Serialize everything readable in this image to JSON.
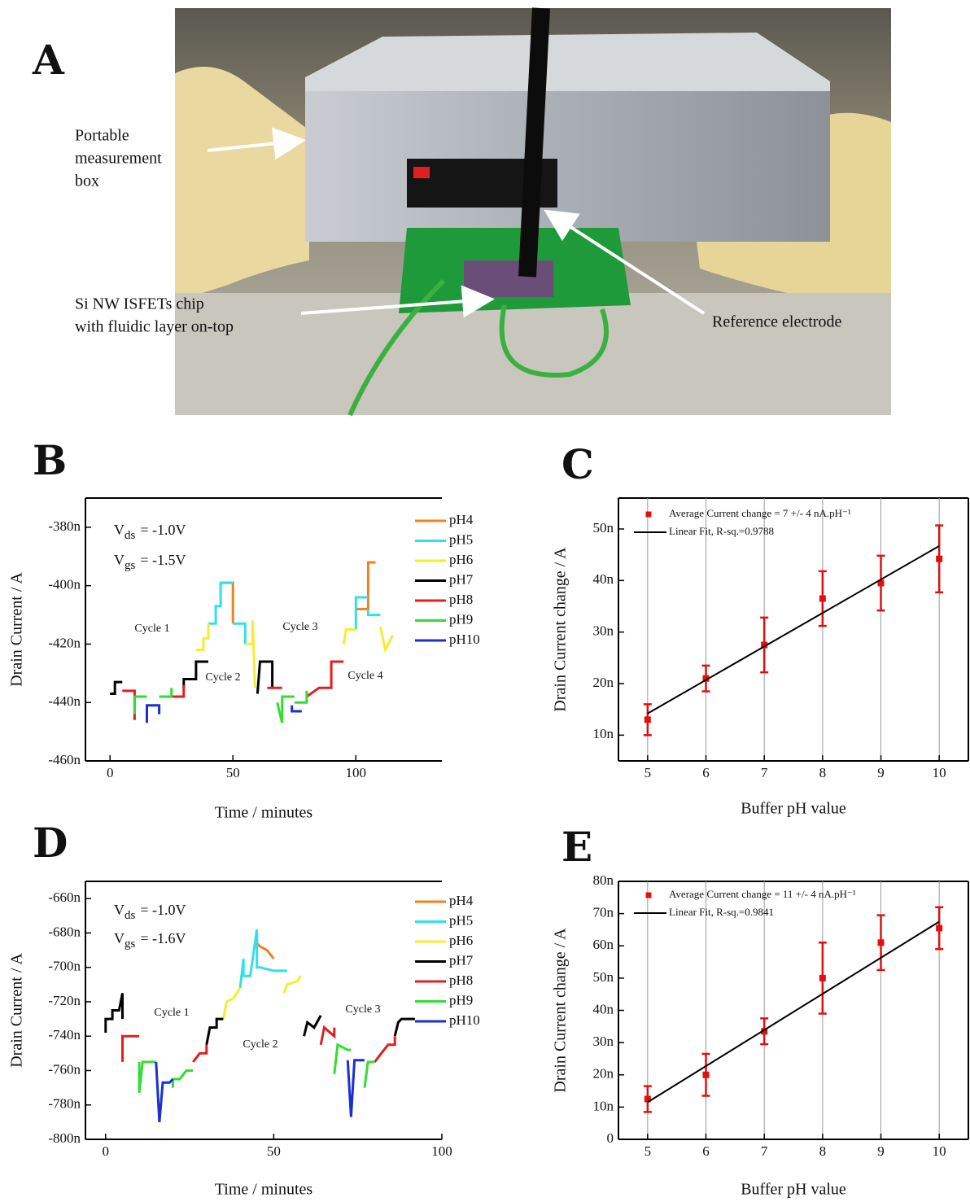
{
  "photo": {
    "panel": "A",
    "labels": [
      [
        "Portable",
        "measurement",
        "box"
      ],
      [
        "Si NW ISFETs chip",
        "with fluidic layer on-top"
      ],
      [
        "Reference electrode"
      ]
    ]
  },
  "chart_data": [
    {
      "type": "line",
      "panel": "B",
      "xlabel": "Time / minutes",
      "ylabel": "Drain Current / A",
      "xlim": [
        -10,
        135
      ],
      "xticks": [
        0,
        50,
        100
      ],
      "ylim": [
        -460,
        -370
      ],
      "yticks": [
        {
          "value": -460,
          "label": "-460n"
        },
        {
          "value": -440,
          "label": "-440n"
        },
        {
          "value": -420,
          "label": "-420n"
        },
        {
          "value": -400,
          "label": "-400n"
        },
        {
          "value": -380,
          "label": "-380n"
        }
      ],
      "conditions": [
        {
          "symbol": "V",
          "sub": "ds",
          "text": "= -1.0V"
        },
        {
          "symbol": "V",
          "sub": "gs",
          "text": "= -1.5V"
        }
      ],
      "annotations": [
        "Cycle 1",
        "Cycle 2",
        "Cycle 3",
        "Cycle 4"
      ],
      "series": [
        {
          "name": "pH4",
          "color": "#f08020",
          "x": [
            45,
            50,
            50,
            null,
            100,
            105,
            105,
            108
          ],
          "values": [
            -399,
            -399,
            -413,
            null,
            -408,
            -408,
            -392,
            -392
          ]
        },
        {
          "name": "pH5",
          "color": "#33e0e8",
          "x": [
            40,
            43,
            43,
            45,
            45,
            50,
            null,
            50,
            55,
            55,
            null,
            100,
            100,
            105,
            null,
            105,
            105,
            110
          ],
          "values": [
            -413,
            -413,
            -407,
            -407,
            -399,
            -399,
            null,
            -413,
            -413,
            -420,
            null,
            -415,
            -404,
            -404,
            null,
            -408,
            -410,
            -410
          ]
        },
        {
          "name": "pH6",
          "color": "#f2ee30",
          "x": [
            35,
            38,
            38,
            40,
            40,
            null,
            55,
            58,
            58,
            59,
            null,
            95,
            96,
            100,
            null,
            110,
            112,
            115
          ],
          "values": [
            -422,
            -422,
            -418,
            -418,
            -413,
            null,
            -420,
            -420,
            -412,
            -435,
            null,
            -420,
            -415,
            -415,
            null,
            -414,
            -422,
            -417
          ]
        },
        {
          "name": "pH7",
          "color": "#000000",
          "x": [
            0,
            2,
            2,
            5,
            null,
            30,
            30,
            35,
            35,
            40,
            null,
            60,
            61,
            66,
            66
          ],
          "values": [
            -437,
            -437,
            -433,
            -433,
            null,
            -435,
            -432,
            -432,
            -426,
            -426,
            null,
            -437,
            -426,
            -426,
            -435
          ]
        },
        {
          "name": "pH8",
          "color": "#e02020",
          "x": [
            5,
            10,
            10,
            null,
            25,
            30,
            30,
            null,
            64,
            70,
            null,
            80,
            85,
            90,
            90,
            95
          ],
          "values": [
            -436,
            -436,
            -446,
            null,
            -438,
            -438,
            -434,
            null,
            -435,
            -435,
            null,
            -438,
            -435,
            -435,
            -426,
            -426
          ]
        },
        {
          "name": "pH9",
          "color": "#33dd33",
          "x": [
            10,
            10,
            15,
            null,
            20,
            25,
            25,
            null,
            68,
            70,
            70,
            75,
            null,
            75,
            80,
            80
          ],
          "values": [
            -444,
            -438,
            -438,
            null,
            -438,
            -438,
            -435,
            null,
            -440,
            -447,
            -438,
            -438,
            null,
            -440,
            -440,
            -436
          ]
        },
        {
          "name": "pH10",
          "color": "#1a2fd6",
          "x": [
            15,
            15,
            20,
            20,
            null,
            74,
            74,
            78
          ],
          "values": [
            -447,
            -441,
            -441,
            -444,
            null,
            -441,
            -443,
            -443
          ]
        }
      ]
    },
    {
      "type": "scatter",
      "panel": "C",
      "xlabel": "Buffer pH value",
      "ylabel": "Drain Current change / A",
      "xlim": [
        4.5,
        10.5
      ],
      "xticks": [
        5,
        6,
        7,
        8,
        9,
        10
      ],
      "vgrid": true,
      "ylim": [
        5,
        56
      ],
      "yticks": [
        {
          "value": 10,
          "label": "10n"
        },
        {
          "value": 20,
          "label": "20n"
        },
        {
          "value": 30,
          "label": "30n"
        },
        {
          "value": 40,
          "label": "40n"
        },
        {
          "value": 50,
          "label": "50n"
        }
      ],
      "series": [
        {
          "name": "Average Current change = 7 +/- 4 nA.pH⁻¹",
          "kind": "scatter",
          "color": "#e01010",
          "x": [
            5,
            6,
            7,
            8,
            9,
            10
          ],
          "values": [
            13,
            21,
            27.5,
            36.5,
            39.5,
            44.2
          ],
          "errors": [
            3,
            2.5,
            5.3,
            5.3,
            5.3,
            6.5
          ]
        },
        {
          "name": "Linear Fit, R-sq.=0.9788",
          "kind": "line",
          "color": "#000000",
          "x": [
            5,
            10
          ],
          "values": [
            14.2,
            46.7
          ]
        }
      ]
    },
    {
      "type": "line",
      "panel": "D",
      "xlabel": "Time / minutes",
      "ylabel": "Drain Current / A",
      "xlim": [
        -6,
        100
      ],
      "xticks": [
        0,
        50,
        100
      ],
      "ylim": [
        -800,
        -650
      ],
      "yticks": [
        {
          "value": -800,
          "label": "-800n"
        },
        {
          "value": -780,
          "label": "-780n"
        },
        {
          "value": -760,
          "label": "-760n"
        },
        {
          "value": -740,
          "label": "-740n"
        },
        {
          "value": -720,
          "label": "-720n"
        },
        {
          "value": -700,
          "label": "-700n"
        },
        {
          "value": -680,
          "label": "-680n"
        },
        {
          "value": -660,
          "label": "-660n"
        }
      ],
      "conditions": [
        {
          "symbol": "V",
          "sub": "ds",
          "text": "= -1.0V"
        },
        {
          "symbol": "V",
          "sub": "gs",
          "text": "= -1.6V"
        }
      ],
      "annotations": [
        "Cycle 1",
        "Cycle 2",
        "Cycle 3"
      ],
      "series": [
        {
          "name": "pH4",
          "color": "#f08020",
          "x": [
            45,
            45,
            46,
            48,
            50
          ],
          "values": [
            -680,
            -686,
            -688,
            -690,
            -695
          ]
        },
        {
          "name": "pH5",
          "color": "#33e0e8",
          "x": [
            40,
            41,
            41,
            43,
            45,
            45,
            46,
            50,
            54
          ],
          "values": [
            -712,
            -695,
            -705,
            -705,
            -678,
            -700,
            -700,
            -702,
            -702
          ]
        },
        {
          "name": "pH6",
          "color": "#f2ee30",
          "x": [
            35,
            36,
            38,
            40,
            null,
            53,
            54,
            57,
            58
          ],
          "values": [
            -730,
            -720,
            -718,
            -712,
            null,
            -715,
            -710,
            -708,
            -705
          ]
        },
        {
          "name": "pH7",
          "color": "#000000",
          "x": [
            0,
            0,
            2,
            2,
            4,
            5,
            5,
            null,
            30,
            31,
            33,
            33,
            35,
            null,
            59,
            60,
            62,
            64,
            null,
            86,
            87,
            88,
            92
          ],
          "values": [
            -738,
            -730,
            -730,
            -725,
            -725,
            -715,
            -730,
            null,
            -745,
            -735,
            -735,
            -730,
            -730,
            null,
            -740,
            -732,
            -735,
            -728,
            null,
            -740,
            -732,
            -730,
            -730
          ]
        },
        {
          "name": "pH8",
          "color": "#e02020",
          "x": [
            5,
            5,
            5,
            10,
            null,
            26,
            28,
            30,
            30,
            null,
            64,
            65,
            68,
            68,
            null,
            80,
            82,
            84,
            86,
            86
          ],
          "values": [
            -740,
            -755,
            -740,
            -740,
            null,
            -755,
            -750,
            -750,
            -745,
            null,
            -745,
            -735,
            -740,
            -735,
            null,
            -755,
            -750,
            -745,
            -745,
            -740
          ]
        },
        {
          "name": "pH9",
          "color": "#33dd33",
          "x": [
            10,
            10,
            11,
            15,
            null,
            20,
            20,
            22,
            24,
            26,
            null,
            68,
            69,
            72,
            73,
            null,
            77,
            78,
            80
          ],
          "values": [
            -755,
            -773,
            -755,
            -755,
            null,
            -770,
            -765,
            -765,
            -760,
            -760,
            null,
            -762,
            -745,
            -748,
            -748,
            null,
            -770,
            -755,
            -755
          ]
        },
        {
          "name": "pH10",
          "color": "#1a2fd6",
          "x": [
            15,
            16,
            17,
            19,
            20,
            null,
            72,
            73,
            74,
            77
          ],
          "values": [
            -755,
            -790,
            -767,
            -767,
            -765,
            null,
            -754,
            -787,
            -754,
            -754
          ]
        }
      ]
    },
    {
      "type": "scatter",
      "panel": "E",
      "xlabel": "Buffer pH value",
      "ylabel": "Drain Current change / A",
      "xlim": [
        4.5,
        10.5
      ],
      "xticks": [
        5,
        6,
        7,
        8,
        9,
        10
      ],
      "vgrid": true,
      "ylim": [
        0,
        80
      ],
      "yticks": [
        0,
        {
          "value": 10,
          "label": "10n"
        },
        {
          "value": 20,
          "label": "20n"
        },
        {
          "value": 30,
          "label": "30n"
        },
        {
          "value": 40,
          "label": "40n"
        },
        {
          "value": 50,
          "label": "50n"
        },
        {
          "value": 60,
          "label": "60n"
        },
        {
          "value": 70,
          "label": "70n"
        },
        {
          "value": 80,
          "label": "80n"
        }
      ],
      "series": [
        {
          "name": "Average Current change  = 11 +/- 4 nA.pH⁻¹",
          "kind": "scatter",
          "color": "#e01010",
          "x": [
            5,
            6,
            7,
            8,
            9,
            10
          ],
          "values": [
            12.5,
            20,
            33.5,
            50,
            61,
            65.5
          ],
          "errors": [
            4,
            6.5,
            4,
            11,
            8.5,
            6.5
          ]
        },
        {
          "name": "Linear Fit, R-sq.=0.9841",
          "kind": "line",
          "color": "#000000",
          "x": [
            5,
            10
          ],
          "values": [
            11.5,
            67.5
          ]
        }
      ]
    }
  ]
}
